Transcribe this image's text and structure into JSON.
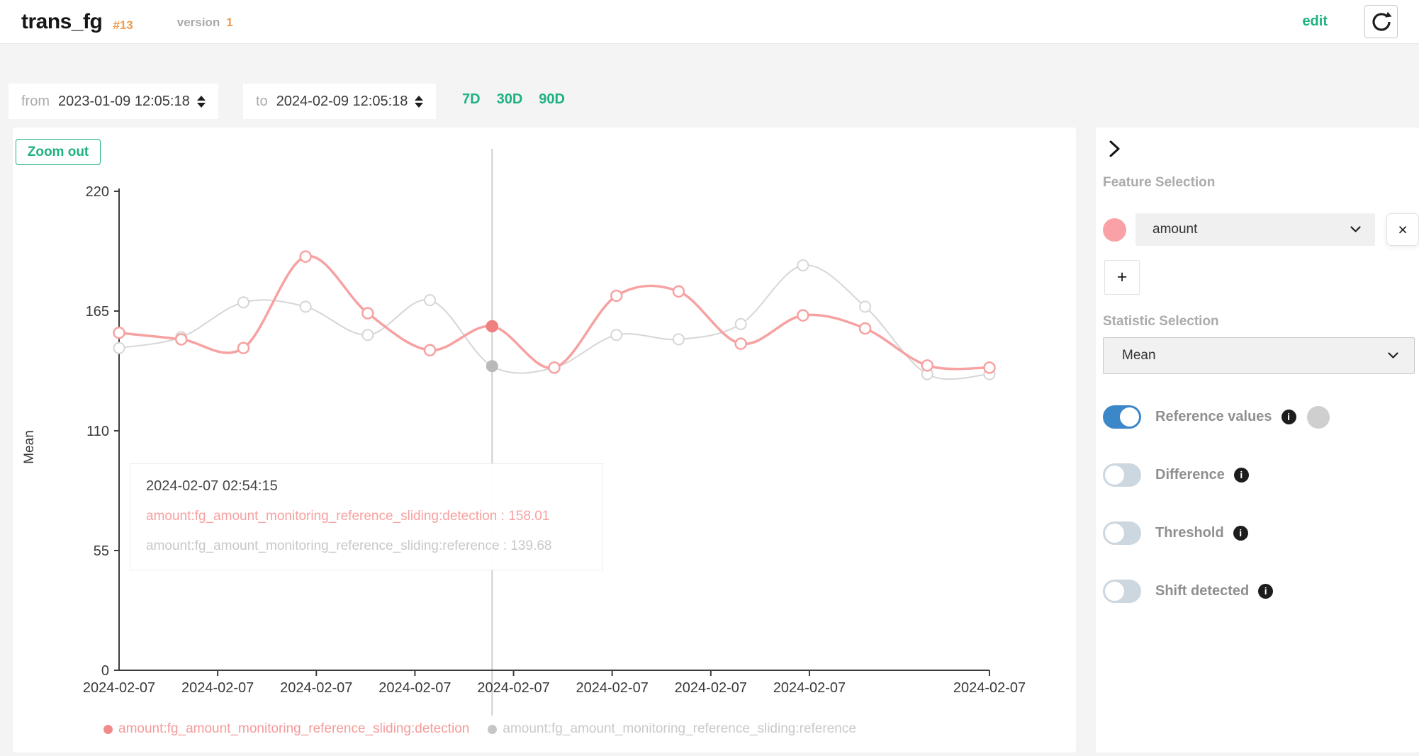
{
  "header": {
    "title": "trans_fg",
    "badge": "#13",
    "version_label": "version",
    "version_value": "1",
    "edit_label": "edit"
  },
  "toolbar": {
    "from_label": "from",
    "from_value": "2023-01-09 12:05:18",
    "to_label": "to",
    "to_value": "2024-02-09 12:05:18",
    "ranges": [
      "7D",
      "30D",
      "90D"
    ]
  },
  "chart": {
    "zoom_out_label": "Zoom out",
    "y_axis_title": "Mean"
  },
  "chart_data": {
    "type": "line",
    "title": "",
    "xlabel": "",
    "ylabel": "Mean",
    "ylim": [
      0,
      220
    ],
    "y_ticks": [
      0,
      55,
      110,
      165,
      220
    ],
    "x_tick_labels": [
      "2024-02-07",
      "2024-02-07",
      "2024-02-07",
      "2024-02-07",
      "2024-02-07",
      "2024-02-07",
      "2024-02-07",
      "2024-02-07",
      "2024-02-07"
    ],
    "grid": false,
    "legend_position": "bottom",
    "crosshair_index": 6,
    "series": [
      {
        "name": "amount:fg_amount_monitoring_reference_sliding:detection",
        "color": "#F7A1A1",
        "active_fill": "#F07F7F",
        "values": [
          155,
          152,
          148,
          190,
          164,
          147,
          158.01,
          139,
          172,
          174,
          150,
          163,
          157,
          140,
          139
        ]
      },
      {
        "name": "amount:fg_amount_monitoring_reference_sliding:reference",
        "color": "#D6D6D6",
        "active_fill": "#B9B9B9",
        "values": [
          148,
          153,
          169,
          167,
          154,
          170,
          139.68,
          139,
          154,
          152,
          159,
          186,
          167,
          136,
          136
        ]
      }
    ]
  },
  "tooltip": {
    "title": "2024-02-07 02:54:15",
    "lines": [
      {
        "label": "amount:fg_amount_monitoring_reference_sliding:detection",
        "value": "158.01",
        "color": "#F8A0A0"
      },
      {
        "label": "amount:fg_amount_monitoring_reference_sliding:reference",
        "value": "139.68",
        "color": "#C8C8C8"
      }
    ]
  },
  "legend": [
    {
      "label": "amount:fg_amount_monitoring_reference_sliding:detection",
      "dot_color": "#F18C8C",
      "text_color": "#F59A9A"
    },
    {
      "label": "amount:fg_amount_monitoring_reference_sliding:reference",
      "dot_color": "#C6C6C6",
      "text_color": "#C9C9C9"
    }
  ],
  "sidebar": {
    "feature_heading": "Feature Selection",
    "feature_color": "#F9A1A6",
    "selected_feature": "amount",
    "remove_label": "×",
    "add_label": "+",
    "statistic_heading": "Statistic Selection",
    "selected_statistic": "Mean",
    "toggles": [
      {
        "label": "Reference values",
        "on": true,
        "has_ref_swatch": true
      },
      {
        "label": "Difference",
        "on": false,
        "has_ref_swatch": false
      },
      {
        "label": "Threshold",
        "on": false,
        "has_ref_swatch": false
      },
      {
        "label": "Shift detected",
        "on": false,
        "has_ref_swatch": false
      }
    ]
  },
  "colors": {
    "accent_green": "#1EB182",
    "accent_orange": "#F2994A",
    "toggle_on_blue": "#3B87C8",
    "toggle_off_gray": "#CDD7DF",
    "axis_dark": "#3D3D3D",
    "crosshair": "#CFCFCF"
  }
}
